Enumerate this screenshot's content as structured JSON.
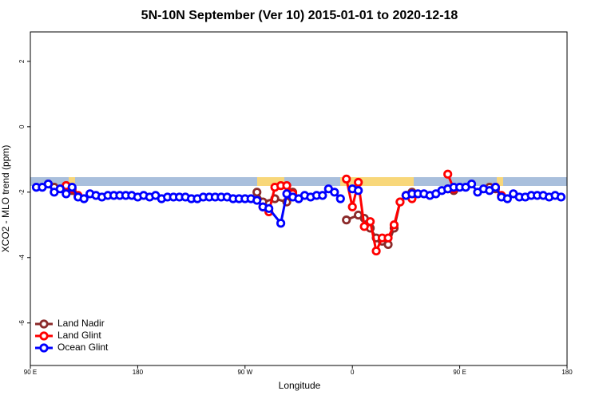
{
  "chart_data": {
    "type": "line",
    "title": "5N-10N September (Ver 10)   2015-01-01 to 2020-12-18",
    "x_label": "Longitude",
    "y_label": "XCO2 - MLO trend (ppm)",
    "xlim": [
      90,
      540
    ],
    "xticks": [
      {
        "value": 90,
        "label": "90 E"
      },
      {
        "value": 180,
        "label": "180"
      },
      {
        "value": 270,
        "label": "90 W"
      },
      {
        "value": 360,
        "label": "0"
      },
      {
        "value": 450,
        "label": "90 E"
      },
      {
        "value": 540,
        "label": "180"
      }
    ],
    "ylim": [
      -7.3,
      2.9
    ],
    "yticks": [
      -6,
      -4,
      -2,
      0,
      2
    ],
    "legend": "bottomleft",
    "series": [
      {
        "name": "Land Nadir",
        "color": "#8b2a2a",
        "x": [
          105,
          110,
          120,
          125,
          130,
          280,
          285,
          295,
          305,
          310,
          315,
          355,
          365,
          370,
          375,
          380,
          385,
          390,
          395,
          400,
          405,
          410,
          415,
          440,
          445,
          450,
          475,
          480
        ],
        "values": [
          -1.75,
          -1.85,
          -1.8,
          -1.95,
          null,
          -2.0,
          -2.3,
          -2.2,
          -2.3,
          -2.0,
          null,
          -2.85,
          -2.7,
          -2.8,
          -3.1,
          -3.4,
          -3.5,
          -3.6,
          -3.1,
          -2.3,
          -2.1,
          -2.0,
          null,
          -1.9,
          -1.95,
          null,
          -1.85,
          -1.9
        ]
      },
      {
        "name": "Land Glint",
        "color": "#ff0000",
        "x": [
          120,
          125,
          130,
          135,
          285,
          290,
          295,
          300,
          305,
          310,
          315,
          355,
          360,
          365,
          370,
          375,
          380,
          385,
          390,
          395,
          400,
          405,
          410,
          415,
          440,
          445,
          450,
          480,
          485
        ],
        "values": [
          -1.8,
          -1.9,
          -2.1,
          null,
          -2.45,
          -2.6,
          -1.85,
          -1.8,
          -1.8,
          -2.05,
          null,
          -1.6,
          -2.45,
          -1.7,
          -3.05,
          -2.9,
          -3.8,
          -3.4,
          -3.4,
          -3.0,
          -2.3,
          -2.1,
          -2.2,
          null,
          -1.45,
          -1.9,
          null,
          -1.85,
          -2.1
        ]
      },
      {
        "name": "Ocean Glint",
        "color": "#0000ff",
        "x": [
          95,
          100,
          105,
          110,
          115,
          120,
          125,
          130,
          135,
          140,
          145,
          150,
          155,
          160,
          165,
          170,
          175,
          180,
          185,
          190,
          195,
          200,
          205,
          210,
          215,
          220,
          225,
          230,
          235,
          240,
          245,
          250,
          255,
          260,
          265,
          270,
          275,
          280,
          285,
          290,
          300,
          305,
          310,
          315,
          320,
          325,
          330,
          335,
          340,
          345,
          350,
          355,
          360,
          365,
          370,
          405,
          410,
          415,
          420,
          425,
          430,
          435,
          440,
          445,
          450,
          455,
          460,
          465,
          470,
          475,
          480,
          485,
          490,
          495,
          500,
          505,
          510,
          515,
          520,
          525,
          530,
          535
        ],
        "values": [
          -1.85,
          -1.85,
          -1.75,
          -2.0,
          -1.9,
          -2.05,
          -1.85,
          -2.15,
          -2.2,
          -2.05,
          -2.1,
          -2.15,
          -2.1,
          -2.1,
          -2.1,
          -2.1,
          -2.1,
          -2.15,
          -2.1,
          -2.15,
          -2.1,
          -2.2,
          -2.15,
          -2.15,
          -2.15,
          -2.15,
          -2.2,
          -2.2,
          -2.15,
          -2.15,
          -2.15,
          -2.15,
          -2.15,
          -2.2,
          -2.2,
          -2.2,
          -2.2,
          -2.25,
          -2.45,
          -2.5,
          -2.95,
          -2.05,
          -2.15,
          -2.2,
          -2.1,
          -2.15,
          -2.1,
          -2.1,
          -1.9,
          -2.0,
          -2.2,
          null,
          -1.9,
          -1.95,
          null,
          -2.1,
          -2.05,
          -2.05,
          -2.05,
          -2.1,
          -2.05,
          -1.95,
          -1.9,
          -1.85,
          -1.85,
          -1.85,
          -1.75,
          -2.0,
          -1.9,
          -1.95,
          -1.85,
          -2.15,
          -2.2,
          -2.05,
          -2.15,
          -2.15,
          -2.1,
          -2.1,
          -2.1,
          -2.15,
          -2.1,
          -2.15
        ]
      }
    ]
  }
}
